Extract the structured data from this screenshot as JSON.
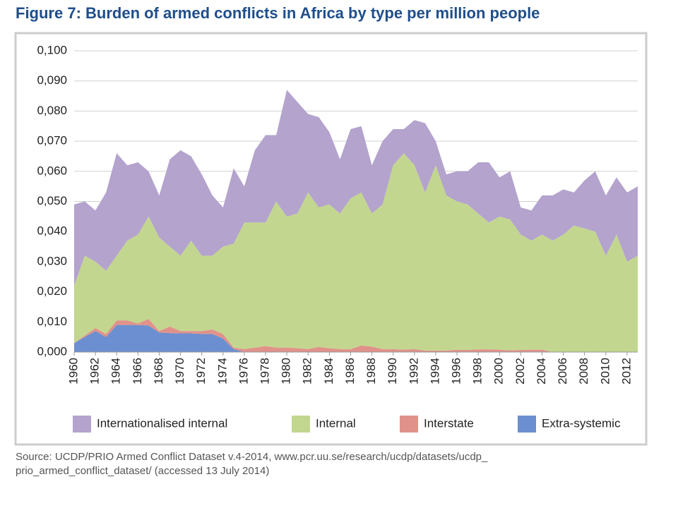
{
  "chart_data": {
    "type": "stacked-area",
    "title": "Figure 7: Burden of armed conflicts in Africa by type per million people",
    "source": [
      "Source: UCDP/PRIO Armed Conflict Dataset v.4-2014, www.pcr.uu.se/research/ucdp/datasets/ucdp_",
      "prio_armed_conflict_dataset/ (accessed 13 July 2014)"
    ],
    "x": [
      1960,
      1961,
      1962,
      1963,
      1964,
      1965,
      1966,
      1967,
      1968,
      1969,
      1970,
      1971,
      1972,
      1973,
      1974,
      1975,
      1976,
      1977,
      1978,
      1979,
      1980,
      1981,
      1982,
      1983,
      1984,
      1985,
      1986,
      1987,
      1988,
      1989,
      1990,
      1991,
      1992,
      1993,
      1994,
      1995,
      1996,
      1997,
      1998,
      1999,
      2000,
      2001,
      2002,
      2003,
      2004,
      2005,
      2006,
      2007,
      2008,
      2009,
      2010,
      2011,
      2012,
      2013
    ],
    "xlim": [
      1960,
      2013
    ],
    "xticks": [
      1960,
      1962,
      1964,
      1966,
      1968,
      1970,
      1972,
      1974,
      1976,
      1978,
      1980,
      1982,
      1984,
      1986,
      1988,
      1990,
      1992,
      1994,
      1996,
      1998,
      2000,
      2002,
      2004,
      2006,
      2008,
      2010,
      2012
    ],
    "ylim": [
      0,
      0.1
    ],
    "yticks": [
      {
        "value": 0,
        "label": "0,000"
      },
      {
        "value": 0.01,
        "label": "0,010"
      },
      {
        "value": 0.02,
        "label": "0,020"
      },
      {
        "value": 0.03,
        "label": "0,030"
      },
      {
        "value": 0.04,
        "label": "0,040"
      },
      {
        "value": 0.05,
        "label": "0,050"
      },
      {
        "value": 0.06,
        "label": "0,060"
      },
      {
        "value": 0.07,
        "label": "0,070"
      },
      {
        "value": 0.08,
        "label": "0,080"
      },
      {
        "value": 0.09,
        "label": "0,090"
      },
      {
        "value": 0.1,
        "label": "0,100"
      }
    ],
    "grid": true,
    "legend": "bottom",
    "series": [
      {
        "name": "Internationalised internal",
        "color": "#b3a3cd",
        "values": [
          0.027,
          0.018,
          0.017,
          0.026,
          0.034,
          0.025,
          0.024,
          0.015,
          0.014,
          0.029,
          0.035,
          0.028,
          0.027,
          0.02,
          0.013,
          0.025,
          0.012,
          0.024,
          0.029,
          0.022,
          0.042,
          0.037,
          0.026,
          0.03,
          0.024,
          0.018,
          0.023,
          0.022,
          0.016,
          0.021,
          0.012,
          0.008,
          0.015,
          0.023,
          0.008,
          0.007,
          0.01,
          0.011,
          0.017,
          0.02,
          0.013,
          0.016,
          0.009,
          0.01,
          0.013,
          0.015,
          0.015,
          0.011,
          0.016,
          0.02,
          0.02,
          0.019,
          0.023,
          0.023
        ]
      },
      {
        "name": "Internal",
        "color": "#c3d68f",
        "values": [
          0.019,
          0.0265,
          0.022,
          0.021,
          0.0215,
          0.0265,
          0.0295,
          0.034,
          0.031,
          0.0265,
          0.025,
          0.03,
          0.025,
          0.0245,
          0.029,
          0.0345,
          0.042,
          0.0415,
          0.041,
          0.0485,
          0.0435,
          0.0447,
          0.052,
          0.0463,
          0.0477,
          0.045,
          0.05,
          0.0508,
          0.0442,
          0.048,
          0.061,
          0.0652,
          0.061,
          0.0525,
          0.0615,
          0.0515,
          0.0492,
          0.0483,
          0.0451,
          0.0421,
          0.0442,
          0.0434,
          0.0383,
          0.0362,
          0.0382,
          0.037,
          0.039,
          0.042,
          0.041,
          0.04,
          0.032,
          0.039,
          0.03,
          0.032
        ]
      },
      {
        "name": "Interstate",
        "color": "#e0928a",
        "values": [
          0,
          0.0005,
          0.001,
          0.001,
          0.0015,
          0.0015,
          0.0005,
          0.0022,
          0.0005,
          0.0022,
          0.0008,
          0.0008,
          0.001,
          0.0015,
          0.0015,
          0.0005,
          0.001,
          0.0015,
          0.002,
          0.0015,
          0.0015,
          0.0013,
          0.001,
          0.0017,
          0.0013,
          0.001,
          0.001,
          0.0022,
          0.0018,
          0.001,
          0.001,
          0.0008,
          0.001,
          0.0005,
          0.0005,
          0.0005,
          0.0008,
          0.0007,
          0.0009,
          0.0009,
          0.0008,
          0.0006,
          0.0007,
          0.0008,
          0.0008,
          0,
          0,
          0,
          0,
          0,
          0,
          0,
          0,
          0
        ]
      },
      {
        "name": "Extra-systemic",
        "color": "#6b8fd0",
        "values": [
          0.003,
          0.005,
          0.007,
          0.005,
          0.009,
          0.009,
          0.009,
          0.0088,
          0.0065,
          0.0063,
          0.0062,
          0.0062,
          0.006,
          0.006,
          0.0045,
          0.001,
          0,
          0,
          0,
          0,
          0,
          0,
          0,
          0,
          0,
          0,
          0,
          0,
          0,
          0,
          0,
          0,
          0,
          0,
          0,
          0,
          0,
          0,
          0,
          0,
          0,
          0,
          0,
          0,
          0,
          0,
          0,
          0,
          0,
          0,
          0,
          0,
          0,
          0
        ]
      }
    ]
  }
}
